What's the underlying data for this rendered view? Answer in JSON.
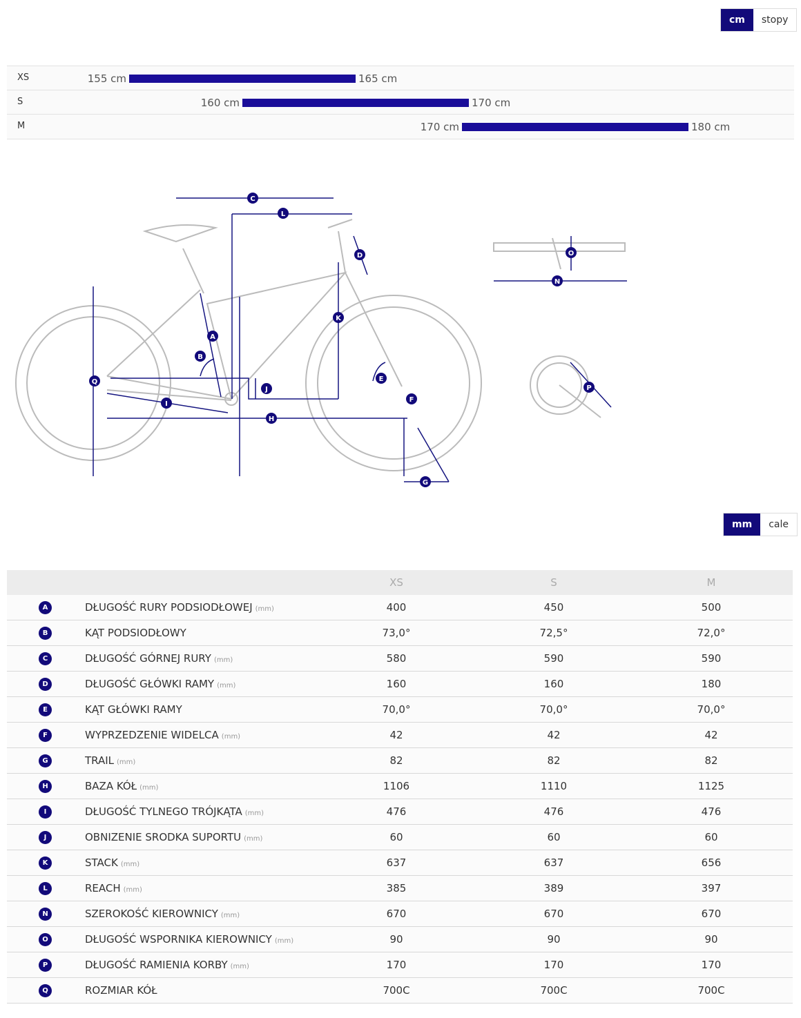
{
  "size_units": {
    "active": "cm",
    "other": "stopy"
  },
  "sizes": [
    {
      "name": "XS",
      "from": "155 cm",
      "to": "165 cm"
    },
    {
      "name": "S",
      "from": "160 cm",
      "to": "170 cm"
    },
    {
      "name": "M",
      "from": "170 cm",
      "to": "180 cm"
    }
  ],
  "geometry_units": {
    "active": "mm",
    "other": "cale"
  },
  "table": {
    "columns": [
      "XS",
      "S",
      "M"
    ],
    "rows": [
      {
        "letter": "A",
        "name": "DŁUGOŚĆ RURY PODSIODŁOWEJ",
        "unit": "(mm)",
        "values": [
          "400",
          "450",
          "500"
        ]
      },
      {
        "letter": "B",
        "name": "KĄT PODSIODŁOWY",
        "values": [
          "73,0°",
          "72,5°",
          "72,0°"
        ]
      },
      {
        "letter": "C",
        "name": "DŁUGOŚĆ GÓRNEJ RURY",
        "unit": "(mm)",
        "values": [
          "580",
          "590",
          "590"
        ]
      },
      {
        "letter": "D",
        "name": "DŁUGOŚĆ GŁÓWKI RAMY",
        "unit": "(mm)",
        "values": [
          "160",
          "160",
          "180"
        ]
      },
      {
        "letter": "E",
        "name": "KĄT GŁÓWKI RAMY",
        "values": [
          "70,0°",
          "70,0°",
          "70,0°"
        ]
      },
      {
        "letter": "F",
        "name": "WYPRZEDZENIE WIDELCA",
        "unit": "(mm)",
        "values": [
          "42",
          "42",
          "42"
        ]
      },
      {
        "letter": "G",
        "name": "TRAIL",
        "unit": "(mm)",
        "values": [
          "82",
          "82",
          "82"
        ]
      },
      {
        "letter": "H",
        "name": "BAZA KÓŁ",
        "unit": "(mm)",
        "values": [
          "1106",
          "1110",
          "1125"
        ]
      },
      {
        "letter": "I",
        "name": "DŁUGOŚĆ TYLNEGO TRÓJKĄTA",
        "unit": "(mm)",
        "values": [
          "476",
          "476",
          "476"
        ]
      },
      {
        "letter": "J",
        "name": "OBNIZENIE SRODKA SUPORTU",
        "unit": "(mm)",
        "values": [
          "60",
          "60",
          "60"
        ]
      },
      {
        "letter": "K",
        "name": "STACK",
        "unit": "(mm)",
        "values": [
          "637",
          "637",
          "656"
        ]
      },
      {
        "letter": "L",
        "name": "REACH",
        "unit": "(mm)",
        "values": [
          "385",
          "389",
          "397"
        ]
      },
      {
        "letter": "N",
        "name": "SZEROKOŚĆ KIEROWNICY",
        "unit": "(mm)",
        "values": [
          "670",
          "670",
          "670"
        ]
      },
      {
        "letter": "O",
        "name": "DŁUGOŚĆ WSPORNIKA KIEROWNICY",
        "unit": "(mm)",
        "values": [
          "90",
          "90",
          "90"
        ]
      },
      {
        "letter": "P",
        "name": "DŁUGOŚĆ RAMIENIA KORBY",
        "unit": "(mm)",
        "values": [
          "170",
          "170",
          "170"
        ]
      },
      {
        "letter": "Q",
        "name": "ROZMIAR KÓŁ",
        "values": [
          "700C",
          "700C",
          "700C"
        ]
      }
    ]
  }
}
